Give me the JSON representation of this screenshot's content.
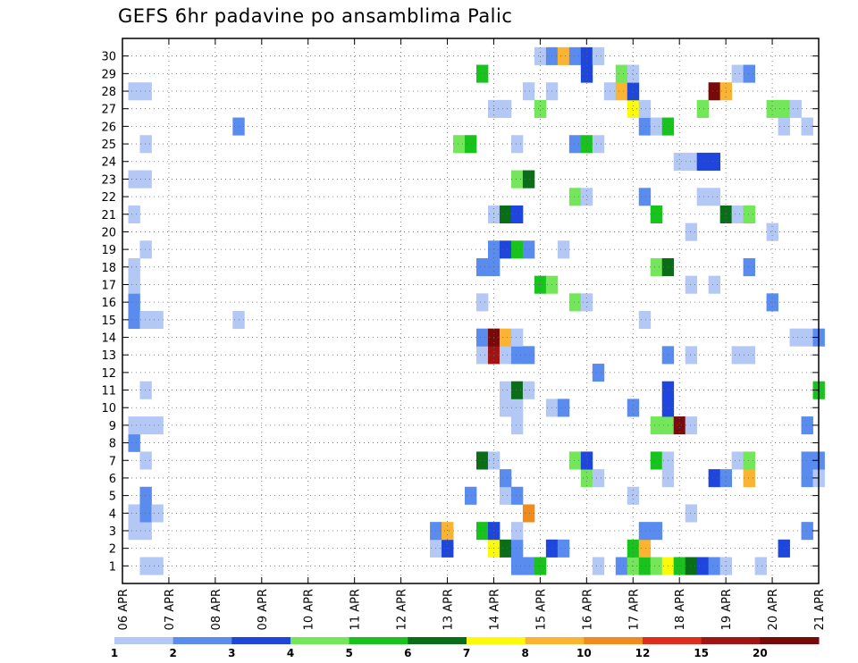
{
  "chart_data": {
    "type": "heatmap",
    "title": "GEFS 6hr padavine po ansamblima Palic",
    "y_members": [
      1,
      2,
      3,
      4,
      5,
      6,
      7,
      8,
      9,
      10,
      11,
      12,
      13,
      14,
      15,
      16,
      17,
      18,
      19,
      20,
      21,
      22,
      23,
      24,
      25,
      26,
      27,
      28,
      29,
      30
    ],
    "x_ticks": [
      "06 APR",
      "07 APR",
      "08 APR",
      "09 APR",
      "10 APR",
      "11 APR",
      "12 APR",
      "13 APR",
      "14 APR",
      "15 APR",
      "16 APR",
      "17 APR",
      "18 APR",
      "19 APR",
      "20 APR",
      "21 APR"
    ],
    "x_range_6h_steps": [
      0,
      60
    ],
    "grid": true,
    "colorbar": {
      "levels": [
        "1",
        "2",
        "3",
        "4",
        "5",
        "6",
        "7",
        "8",
        "10",
        "12",
        "15",
        "20"
      ],
      "colors": [
        "#b4c8f5",
        "#5a8cf0",
        "#1e46dc",
        "#73e65a",
        "#19c31e",
        "#0a6e19",
        "#fafa0a",
        "#fab432",
        "#f08c1e",
        "#dc2d1e",
        "#a01414",
        "#780a0a"
      ]
    },
    "cells": [
      [
        2,
        1,
        0
      ],
      [
        3,
        1,
        0
      ],
      [
        34,
        1,
        1
      ],
      [
        35,
        1,
        1
      ],
      [
        36,
        1,
        4
      ],
      [
        41,
        1,
        0
      ],
      [
        43,
        1,
        1
      ],
      [
        44,
        1,
        3
      ],
      [
        45,
        1,
        4
      ],
      [
        46,
        1,
        3
      ],
      [
        47,
        1,
        6
      ],
      [
        48,
        1,
        4
      ],
      [
        49,
        1,
        5
      ],
      [
        50,
        1,
        2
      ],
      [
        51,
        1,
        1
      ],
      [
        52,
        1,
        0
      ],
      [
        55,
        1,
        0
      ],
      [
        27,
        2,
        0
      ],
      [
        28,
        2,
        2
      ],
      [
        32,
        2,
        6
      ],
      [
        33,
        2,
        5
      ],
      [
        34,
        2,
        1
      ],
      [
        37,
        2,
        2
      ],
      [
        38,
        2,
        1
      ],
      [
        44,
        2,
        4
      ],
      [
        45,
        2,
        7
      ],
      [
        57,
        2,
        2
      ],
      [
        1,
        3,
        0
      ],
      [
        2,
        3,
        0
      ],
      [
        27,
        3,
        1
      ],
      [
        28,
        3,
        7
      ],
      [
        31,
        3,
        4
      ],
      [
        32,
        3,
        2
      ],
      [
        34,
        3,
        0
      ],
      [
        45,
        3,
        1
      ],
      [
        46,
        3,
        1
      ],
      [
        59,
        3,
        1
      ],
      [
        1,
        4,
        0
      ],
      [
        2,
        4,
        1
      ],
      [
        3,
        4,
        0
      ],
      [
        35,
        4,
        8
      ],
      [
        49,
        4,
        0
      ],
      [
        2,
        5,
        1
      ],
      [
        30,
        5,
        1
      ],
      [
        33,
        5,
        0
      ],
      [
        34,
        5,
        1
      ],
      [
        44,
        5,
        0
      ],
      [
        33,
        6,
        1
      ],
      [
        40,
        6,
        3
      ],
      [
        41,
        6,
        0
      ],
      [
        47,
        6,
        0
      ],
      [
        51,
        6,
        2
      ],
      [
        52,
        6,
        1
      ],
      [
        54,
        6,
        7
      ],
      [
        59,
        6,
        1
      ],
      [
        60,
        6,
        0
      ],
      [
        2,
        7,
        0
      ],
      [
        31,
        7,
        5
      ],
      [
        32,
        7,
        0
      ],
      [
        39,
        7,
        3
      ],
      [
        40,
        7,
        2
      ],
      [
        46,
        7,
        4
      ],
      [
        47,
        7,
        0
      ],
      [
        53,
        7,
        0
      ],
      [
        54,
        7,
        3
      ],
      [
        59,
        7,
        1
      ],
      [
        60,
        7,
        1
      ],
      [
        1,
        8,
        1
      ],
      [
        1,
        9,
        0
      ],
      [
        2,
        9,
        0
      ],
      [
        3,
        9,
        0
      ],
      [
        34,
        9,
        0
      ],
      [
        46,
        9,
        3
      ],
      [
        47,
        9,
        3
      ],
      [
        48,
        9,
        11
      ],
      [
        49,
        9,
        0
      ],
      [
        59,
        9,
        1
      ],
      [
        33,
        10,
        0
      ],
      [
        34,
        10,
        0
      ],
      [
        37,
        10,
        0
      ],
      [
        38,
        10,
        1
      ],
      [
        44,
        10,
        1
      ],
      [
        47,
        10,
        2
      ],
      [
        2,
        11,
        0
      ],
      [
        33,
        11,
        0
      ],
      [
        34,
        11,
        5
      ],
      [
        35,
        11,
        0
      ],
      [
        47,
        11,
        2
      ],
      [
        60,
        11,
        4
      ],
      [
        41,
        12,
        1
      ],
      [
        31,
        13,
        0
      ],
      [
        32,
        13,
        10
      ],
      [
        33,
        13,
        0
      ],
      [
        34,
        13,
        1
      ],
      [
        35,
        13,
        1
      ],
      [
        47,
        13,
        1
      ],
      [
        49,
        13,
        0
      ],
      [
        53,
        13,
        0
      ],
      [
        54,
        13,
        0
      ],
      [
        31,
        14,
        1
      ],
      [
        32,
        14,
        11
      ],
      [
        33,
        14,
        7
      ],
      [
        34,
        14,
        0
      ],
      [
        58,
        14,
        0
      ],
      [
        59,
        14,
        0
      ],
      [
        60,
        14,
        1
      ],
      [
        1,
        15,
        1
      ],
      [
        2,
        15,
        0
      ],
      [
        3,
        15,
        0
      ],
      [
        10,
        15,
        0
      ],
      [
        45,
        15,
        0
      ],
      [
        1,
        16,
        1
      ],
      [
        31,
        16,
        0
      ],
      [
        39,
        16,
        3
      ],
      [
        40,
        16,
        0
      ],
      [
        56,
        16,
        1
      ],
      [
        1,
        17,
        0
      ],
      [
        36,
        17,
        4
      ],
      [
        37,
        17,
        3
      ],
      [
        49,
        17,
        0
      ],
      [
        51,
        17,
        0
      ],
      [
        1,
        18,
        0
      ],
      [
        31,
        18,
        1
      ],
      [
        32,
        18,
        1
      ],
      [
        46,
        18,
        3
      ],
      [
        47,
        18,
        5
      ],
      [
        54,
        18,
        1
      ],
      [
        2,
        19,
        0
      ],
      [
        32,
        19,
        1
      ],
      [
        33,
        19,
        2
      ],
      [
        34,
        19,
        4
      ],
      [
        35,
        19,
        1
      ],
      [
        38,
        19,
        0
      ],
      [
        49,
        20,
        0
      ],
      [
        56,
        20,
        0
      ],
      [
        1,
        21,
        0
      ],
      [
        32,
        21,
        0
      ],
      [
        33,
        21,
        5
      ],
      [
        34,
        21,
        2
      ],
      [
        46,
        21,
        4
      ],
      [
        52,
        21,
        5
      ],
      [
        53,
        21,
        0
      ],
      [
        54,
        21,
        3
      ],
      [
        39,
        22,
        3
      ],
      [
        40,
        22,
        0
      ],
      [
        45,
        22,
        1
      ],
      [
        50,
        22,
        0
      ],
      [
        51,
        22,
        0
      ],
      [
        1,
        23,
        0
      ],
      [
        2,
        23,
        0
      ],
      [
        34,
        23,
        3
      ],
      [
        35,
        23,
        5
      ],
      [
        48,
        24,
        0
      ],
      [
        49,
        24,
        0
      ],
      [
        50,
        24,
        2
      ],
      [
        51,
        24,
        2
      ],
      [
        2,
        25,
        0
      ],
      [
        29,
        25,
        3
      ],
      [
        30,
        25,
        4
      ],
      [
        34,
        25,
        0
      ],
      [
        39,
        25,
        1
      ],
      [
        40,
        25,
        4
      ],
      [
        41,
        25,
        0
      ],
      [
        10,
        26,
        1
      ],
      [
        45,
        26,
        1
      ],
      [
        46,
        26,
        0
      ],
      [
        47,
        26,
        4
      ],
      [
        57,
        26,
        0
      ],
      [
        59,
        26,
        0
      ],
      [
        32,
        27,
        0
      ],
      [
        33,
        27,
        0
      ],
      [
        36,
        27,
        3
      ],
      [
        44,
        27,
        6
      ],
      [
        45,
        27,
        0
      ],
      [
        50,
        27,
        3
      ],
      [
        56,
        27,
        3
      ],
      [
        57,
        27,
        3
      ],
      [
        58,
        27,
        0
      ],
      [
        1,
        28,
        0
      ],
      [
        2,
        28,
        0
      ],
      [
        35,
        28,
        0
      ],
      [
        37,
        28,
        0
      ],
      [
        42,
        28,
        0
      ],
      [
        43,
        28,
        7
      ],
      [
        44,
        28,
        2
      ],
      [
        51,
        28,
        11
      ],
      [
        52,
        28,
        7
      ],
      [
        31,
        29,
        4
      ],
      [
        40,
        29,
        2
      ],
      [
        43,
        29,
        3
      ],
      [
        44,
        29,
        0
      ],
      [
        53,
        29,
        0
      ],
      [
        54,
        29,
        1
      ],
      [
        36,
        30,
        0
      ],
      [
        37,
        30,
        1
      ],
      [
        38,
        30,
        7
      ],
      [
        39,
        30,
        1
      ],
      [
        40,
        30,
        2
      ],
      [
        41,
        30,
        0
      ]
    ]
  }
}
